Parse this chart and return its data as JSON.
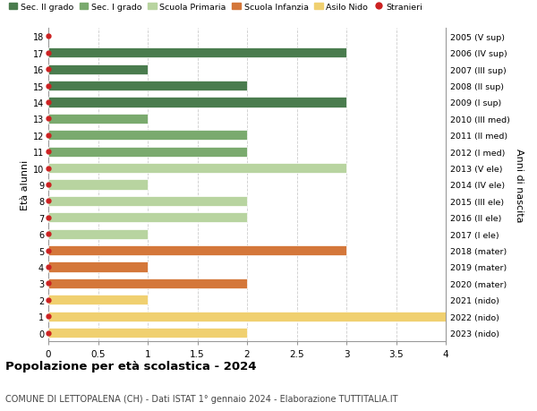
{
  "ages": [
    18,
    17,
    16,
    15,
    14,
    13,
    12,
    11,
    10,
    9,
    8,
    7,
    6,
    5,
    4,
    3,
    2,
    1,
    0
  ],
  "years": [
    "2005 (V sup)",
    "2006 (IV sup)",
    "2007 (III sup)",
    "2008 (II sup)",
    "2009 (I sup)",
    "2010 (III med)",
    "2011 (II med)",
    "2012 (I med)",
    "2013 (V ele)",
    "2014 (IV ele)",
    "2015 (III ele)",
    "2016 (II ele)",
    "2017 (I ele)",
    "2018 (mater)",
    "2019 (mater)",
    "2020 (mater)",
    "2021 (nido)",
    "2022 (nido)",
    "2023 (nido)"
  ],
  "values": [
    0,
    3,
    1,
    2,
    3,
    1,
    2,
    2,
    3,
    1,
    2,
    2,
    1,
    3,
    1,
    2,
    1,
    4,
    2
  ],
  "colors": [
    "#4a7c4e",
    "#4a7c4e",
    "#4a7c4e",
    "#4a7c4e",
    "#4a7c4e",
    "#7aaa6e",
    "#7aaa6e",
    "#7aaa6e",
    "#b8d4a0",
    "#b8d4a0",
    "#b8d4a0",
    "#b8d4a0",
    "#b8d4a0",
    "#d4773a",
    "#d4773a",
    "#d4773a",
    "#f0d070",
    "#f0d070",
    "#f0d070"
  ],
  "stranieri_ages": [
    18,
    17,
    16,
    15,
    14,
    13,
    12,
    11,
    10,
    9,
    8,
    7,
    6,
    5,
    4,
    3,
    2,
    1,
    0
  ],
  "legend_labels": [
    "Sec. II grado",
    "Sec. I grado",
    "Scuola Primaria",
    "Scuola Infanzia",
    "Asilo Nido",
    "Stranieri"
  ],
  "legend_colors": [
    "#4a7c4e",
    "#7aaa6e",
    "#b8d4a0",
    "#d4773a",
    "#f0d070",
    "#cc2222"
  ],
  "ylabel": "Età alunni",
  "right_ylabel": "Anni di nascita",
  "title": "Popolazione per età scolastica - 2024",
  "subtitle": "COMUNE DI LETTOPALENA (CH) - Dati ISTAT 1° gennaio 2024 - Elaborazione TUTTITALIA.IT",
  "xlim": [
    0,
    4.0
  ],
  "xticks": [
    0,
    0.5,
    1.0,
    1.5,
    2.0,
    2.5,
    3.0,
    3.5,
    4.0
  ],
  "background_color": "#ffffff",
  "bar_height": 0.6
}
